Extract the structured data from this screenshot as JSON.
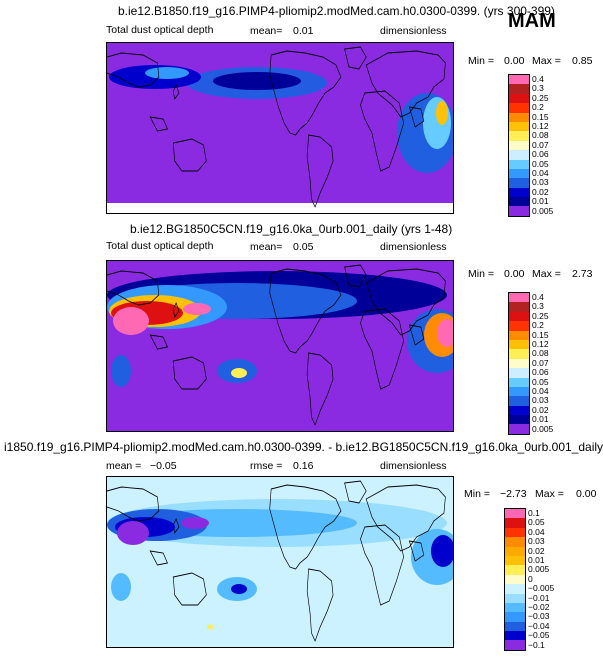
{
  "season": "MAM",
  "colors": {
    "bg_purple": "#8a2be2",
    "light_blue": "#ccf2ff",
    "coast": "#000000"
  },
  "panels": [
    {
      "title": "b.ie12.B1850.f19_g16.PIMP4-pliomip2.modMed.cam.h0.0300-0399. (yrs 300-399)",
      "left": "Total dust optical depth",
      "stat1_label": "mean=",
      "stat1_value": "0.01",
      "stat2_label": "",
      "stat2_value": "",
      "units": "dimensionless",
      "min_label": "Min =",
      "min_value": "0.00",
      "max_label": "Max =",
      "max_value": "0.85",
      "levels": [
        "0.4",
        "0.3",
        "0.25",
        "0.2",
        "0.15",
        "0.12",
        "0.08",
        "0.07",
        "0.06",
        "0.05",
        "0.04",
        "0.03",
        "0.02",
        "0.01",
        "0.005"
      ],
      "colors": [
        "#ff69b4",
        "#b22222",
        "#dd1111",
        "#ff3300",
        "#ff8c00",
        "#ffc107",
        "#ffee55",
        "#fffccc",
        "#cceeff",
        "#66ccff",
        "#3399ff",
        "#1f5fe0",
        "#0000cd",
        "#000099",
        "#8a2be2"
      ]
    },
    {
      "title": "b.ie12.BG1850C5CN.f19_g16.0ka_0urb.001_daily (yrs 1-48)",
      "left": "Total dust optical depth",
      "stat1_label": "mean=",
      "stat1_value": "0.05",
      "stat2_label": "",
      "stat2_value": "",
      "units": "dimensionless",
      "min_label": "Min =",
      "min_value": "0.00",
      "max_label": "Max =",
      "max_value": "2.73",
      "levels": [
        "0.4",
        "0.3",
        "0.25",
        "0.2",
        "0.15",
        "0.12",
        "0.08",
        "0.07",
        "0.06",
        "0.05",
        "0.04",
        "0.03",
        "0.02",
        "0.01",
        "0.005"
      ],
      "colors": [
        "#ff69b4",
        "#b22222",
        "#dd1111",
        "#ff3300",
        "#ff8c00",
        "#ffc107",
        "#ffee55",
        "#fffccc",
        "#cceeff",
        "#66ccff",
        "#3399ff",
        "#1f5fe0",
        "#0000cd",
        "#000099",
        "#8a2be2"
      ]
    },
    {
      "title": "i1850.f19_g16.PIMP4-pliomip2.modMed.cam.h0.0300-0399. - b.ie12.BG1850C5CN.f19_g16.0ka_0urb.001_daily",
      "left": "",
      "stat1_label": "mean =",
      "stat1_value": "−0.05",
      "stat2_label": "rmse =",
      "stat2_value": "0.16",
      "units": "dimensionless",
      "min_label": "Min =",
      "min_value": "−2.73",
      "max_label": "Max =",
      "max_value": "0.00",
      "levels": [
        "0.1",
        "0.05",
        "0.04",
        "0.03",
        "0.02",
        "0.01",
        "0.005",
        "0",
        "−0.005",
        "−0.01",
        "−0.02",
        "−0.03",
        "−0.04",
        "−0.05",
        "−0.1"
      ],
      "colors": [
        "#ff69b4",
        "#dd1111",
        "#ff3300",
        "#ff8c00",
        "#ffaa00",
        "#ffc107",
        "#ffee55",
        "#fffccc",
        "#ccf2ff",
        "#99ddff",
        "#55bbff",
        "#3399ff",
        "#1f5fe0",
        "#0000cd",
        "#8a2be2"
      ]
    }
  ]
}
